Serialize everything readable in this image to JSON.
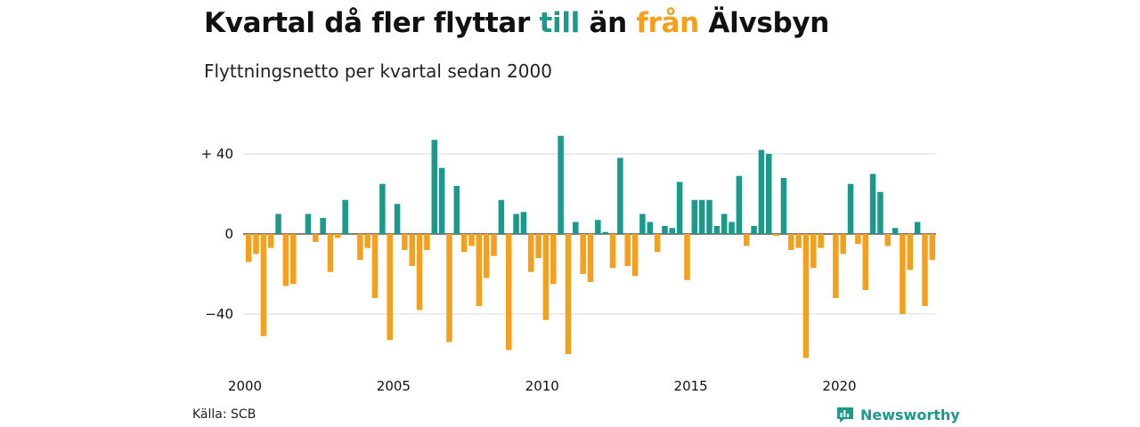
{
  "title": {
    "part1": "Kvartal då fler flyttar ",
    "teal_word": "till",
    "part2": " än ",
    "orange_word": "från",
    "part3": " Älvsbyn"
  },
  "subtitle": "Flyttningsnetto per kvartal sedan 2000",
  "source": "Källa: SCB",
  "brand": {
    "name": "Newsworthy",
    "icon": "newsworthy-logo-icon"
  },
  "colors": {
    "positive": "#1b998b",
    "negative": "#f4a01c",
    "grid": "#d9d9d9",
    "zero": "#333333"
  },
  "chart_data": {
    "type": "bar",
    "title": "Kvartal då fler flyttar till än från Älvsbyn",
    "subtitle": "Flyttningsnetto per kvartal sedan 2000",
    "xlabel": "",
    "ylabel": "",
    "ylim": [
      -62,
      50
    ],
    "yticks": [
      40,
      0,
      -40
    ],
    "ytick_labels": [
      "+ 40",
      "0",
      "−40"
    ],
    "xtick_labels": [
      "2000",
      "2005",
      "2010",
      "2015",
      "2020"
    ],
    "grid": true,
    "legend": "none",
    "start_period": "2000 Q1",
    "frequency": "quarterly",
    "values": [
      -14,
      -10,
      -51,
      -7,
      10,
      -26,
      -25,
      0,
      10,
      -4,
      8,
      -19,
      -2,
      17,
      0,
      -13,
      -7,
      -32,
      25,
      -53,
      15,
      -8,
      -16,
      -38,
      -8,
      47,
      33,
      -54,
      24,
      -9,
      -6,
      -36,
      -22,
      -11,
      17,
      -58,
      10,
      11,
      -19,
      -12,
      -43,
      -25,
      49,
      -60,
      6,
      -20,
      -24,
      7,
      1,
      -17,
      38,
      -16,
      -21,
      10,
      6,
      -9,
      4,
      3,
      26,
      -23,
      17,
      17,
      17,
      4,
      10,
      6,
      29,
      -6,
      4,
      42,
      40,
      -1,
      28,
      -8,
      -7,
      -62,
      -17,
      -7,
      0,
      -32,
      -10,
      25,
      -5,
      -28,
      30,
      21,
      -6,
      3,
      -40,
      -18,
      6,
      -36,
      -13
    ]
  }
}
